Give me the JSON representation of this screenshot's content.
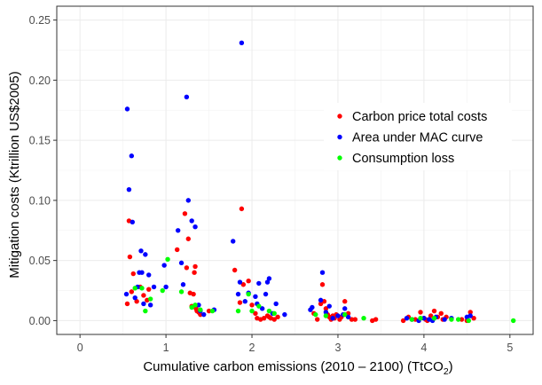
{
  "chart_data": {
    "type": "scatter",
    "xlabel_main": "Cumulative carbon emissions (2010 – 2100) (TtCO",
    "xlabel_sub": "2",
    "xlabel_end": ")",
    "ylabel": "Mitigation costs (Ktrillion US$2005)",
    "xlim": [
      -0.27,
      5.27
    ],
    "ylim": [
      -0.0115,
      0.2615
    ],
    "x_ticks": [
      0,
      1,
      2,
      3,
      4,
      5
    ],
    "x_tick_labels": [
      "0",
      "1",
      "2",
      "3",
      "4",
      "5"
    ],
    "y_ticks": [
      0,
      0.05,
      0.1,
      0.15,
      0.2,
      0.25
    ],
    "y_tick_labels": [
      "0.00",
      "0.05",
      "0.10",
      "0.15",
      "0.20",
      "0.25"
    ],
    "grid": true,
    "legend_position": "top-right",
    "series": [
      {
        "name": "Carbon price total costs",
        "color": "#ff0000",
        "points": [
          [
            0.55,
            0.014
          ],
          [
            0.57,
            0.083
          ],
          [
            0.58,
            0.053
          ],
          [
            0.6,
            0.024
          ],
          [
            0.62,
            0.039
          ],
          [
            0.66,
            0.016
          ],
          [
            0.7,
            0.028
          ],
          [
            0.74,
            0.021
          ],
          [
            0.78,
            0.017
          ],
          [
            0.8,
            0.026
          ],
          [
            1.13,
            0.059
          ],
          [
            1.22,
            0.089
          ],
          [
            1.24,
            0.044
          ],
          [
            1.26,
            0.068
          ],
          [
            1.28,
            0.023
          ],
          [
            1.3,
            0.012
          ],
          [
            1.32,
            0.022
          ],
          [
            1.33,
            0.04
          ],
          [
            1.34,
            0.045
          ],
          [
            1.35,
            0.01
          ],
          [
            1.36,
            0.008
          ],
          [
            1.38,
            0.007
          ],
          [
            1.4,
            0.005
          ],
          [
            1.5,
            0.008
          ],
          [
            1.8,
            0.042
          ],
          [
            1.86,
            0.015
          ],
          [
            1.88,
            0.093
          ],
          [
            1.9,
            0.03
          ],
          [
            1.96,
            0.033
          ],
          [
            2.0,
            0.013
          ],
          [
            2.04,
            0.006
          ],
          [
            2.06,
            0.002
          ],
          [
            2.1,
            0.001
          ],
          [
            2.14,
            0.002
          ],
          [
            2.18,
            0.004
          ],
          [
            2.2,
            0.003
          ],
          [
            2.22,
            0.002
          ],
          [
            2.26,
            0.001
          ],
          [
            2.3,
            0.003
          ],
          [
            2.72,
            0.006
          ],
          [
            2.76,
            0.001
          ],
          [
            2.8,
            0.014
          ],
          [
            2.82,
            0.03
          ],
          [
            2.84,
            0.016
          ],
          [
            2.86,
            0.01
          ],
          [
            2.88,
            0.005
          ],
          [
            2.9,
            0.003
          ],
          [
            2.92,
            0.001
          ],
          [
            2.94,
            0.004
          ],
          [
            2.96,
            0.002
          ],
          [
            2.98,
            0.005
          ],
          [
            3.02,
            0.001
          ],
          [
            3.04,
            0.003
          ],
          [
            3.08,
            0.016
          ],
          [
            3.12,
            0.006
          ],
          [
            3.16,
            0.001
          ],
          [
            3.2,
            0.001
          ],
          [
            3.4,
            0.0
          ],
          [
            3.44,
            0.001
          ],
          [
            3.76,
            0.0
          ],
          [
            3.82,
            0.003
          ],
          [
            3.9,
            0.001
          ],
          [
            3.96,
            0.007
          ],
          [
            4.0,
            0.002
          ],
          [
            4.02,
            0.001
          ],
          [
            4.04,
            0.0
          ],
          [
            4.08,
            0.004
          ],
          [
            4.12,
            0.008
          ],
          [
            4.16,
            0.003
          ],
          [
            4.2,
            0.006
          ],
          [
            4.22,
            0.001
          ],
          [
            4.26,
            0.003
          ],
          [
            4.44,
            0.001
          ],
          [
            4.5,
            0.0
          ],
          [
            4.54,
            0.007
          ],
          [
            4.58,
            0.002
          ]
        ]
      },
      {
        "name": "Area under MAC curve",
        "color": "#0000ff",
        "points": [
          [
            0.54,
            0.022
          ],
          [
            0.55,
            0.176
          ],
          [
            0.57,
            0.109
          ],
          [
            0.6,
            0.137
          ],
          [
            0.61,
            0.082
          ],
          [
            0.64,
            0.019
          ],
          [
            0.67,
            0.028
          ],
          [
            0.69,
            0.04
          ],
          [
            0.71,
            0.058
          ],
          [
            0.72,
            0.04
          ],
          [
            0.74,
            0.014
          ],
          [
            0.76,
            0.055
          ],
          [
            0.8,
            0.038
          ],
          [
            0.82,
            0.013
          ],
          [
            0.86,
            0.028
          ],
          [
            0.98,
            0.046
          ],
          [
            1.0,
            0.028
          ],
          [
            1.14,
            0.075
          ],
          [
            1.18,
            0.048
          ],
          [
            1.2,
            0.03
          ],
          [
            1.24,
            0.186
          ],
          [
            1.26,
            0.1
          ],
          [
            1.3,
            0.083
          ],
          [
            1.34,
            0.078
          ],
          [
            1.38,
            0.013
          ],
          [
            1.4,
            0.008
          ],
          [
            1.44,
            0.005
          ],
          [
            1.56,
            0.009
          ],
          [
            1.78,
            0.066
          ],
          [
            1.84,
            0.022
          ],
          [
            1.86,
            0.032
          ],
          [
            1.88,
            0.231
          ],
          [
            1.92,
            0.016
          ],
          [
            1.96,
            0.023
          ],
          [
            2.04,
            0.02
          ],
          [
            2.06,
            0.014
          ],
          [
            2.08,
            0.031
          ],
          [
            2.12,
            0.01
          ],
          [
            2.16,
            0.022
          ],
          [
            2.18,
            0.032
          ],
          [
            2.2,
            0.035
          ],
          [
            2.24,
            0.006
          ],
          [
            2.28,
            0.014
          ],
          [
            2.38,
            0.005
          ],
          [
            2.68,
            0.009
          ],
          [
            2.7,
            0.011
          ],
          [
            2.8,
            0.017
          ],
          [
            2.82,
            0.04
          ],
          [
            2.86,
            0.007
          ],
          [
            2.9,
            0.012
          ],
          [
            2.94,
            0.002
          ],
          [
            3.0,
            0.004
          ],
          [
            3.06,
            0.005
          ],
          [
            3.08,
            0.01
          ],
          [
            3.12,
            0.003
          ],
          [
            3.8,
            0.002
          ],
          [
            3.86,
            0.001
          ],
          [
            3.94,
            0.0
          ],
          [
            4.0,
            0.002
          ],
          [
            4.06,
            0.001
          ],
          [
            4.1,
            0.0
          ],
          [
            4.14,
            0.003
          ],
          [
            4.24,
            0.001
          ],
          [
            4.32,
            0.002
          ],
          [
            4.5,
            0.003
          ],
          [
            4.54,
            0.004
          ]
        ]
      },
      {
        "name": "Consumption loss",
        "color": "#00ff00",
        "points": [
          [
            0.64,
            0.027
          ],
          [
            0.72,
            0.027
          ],
          [
            0.76,
            0.008
          ],
          [
            0.82,
            0.018
          ],
          [
            0.96,
            0.025
          ],
          [
            1.02,
            0.051
          ],
          [
            1.18,
            0.024
          ],
          [
            1.3,
            0.011
          ],
          [
            1.34,
            0.013
          ],
          [
            1.4,
            0.009
          ],
          [
            1.54,
            0.008
          ],
          [
            1.84,
            0.008
          ],
          [
            1.96,
            0.022
          ],
          [
            2.0,
            0.008
          ],
          [
            2.08,
            0.012
          ],
          [
            2.2,
            0.008
          ],
          [
            2.26,
            0.006
          ],
          [
            2.74,
            0.005
          ],
          [
            2.86,
            0.004
          ],
          [
            3.08,
            0.005
          ],
          [
            3.3,
            0.002
          ],
          [
            3.86,
            0.001
          ],
          [
            3.96,
            0.002
          ],
          [
            4.12,
            0.002
          ],
          [
            4.32,
            0.001
          ],
          [
            4.4,
            0.001
          ],
          [
            4.52,
            0.0
          ],
          [
            5.04,
            0.0
          ]
        ]
      }
    ]
  }
}
